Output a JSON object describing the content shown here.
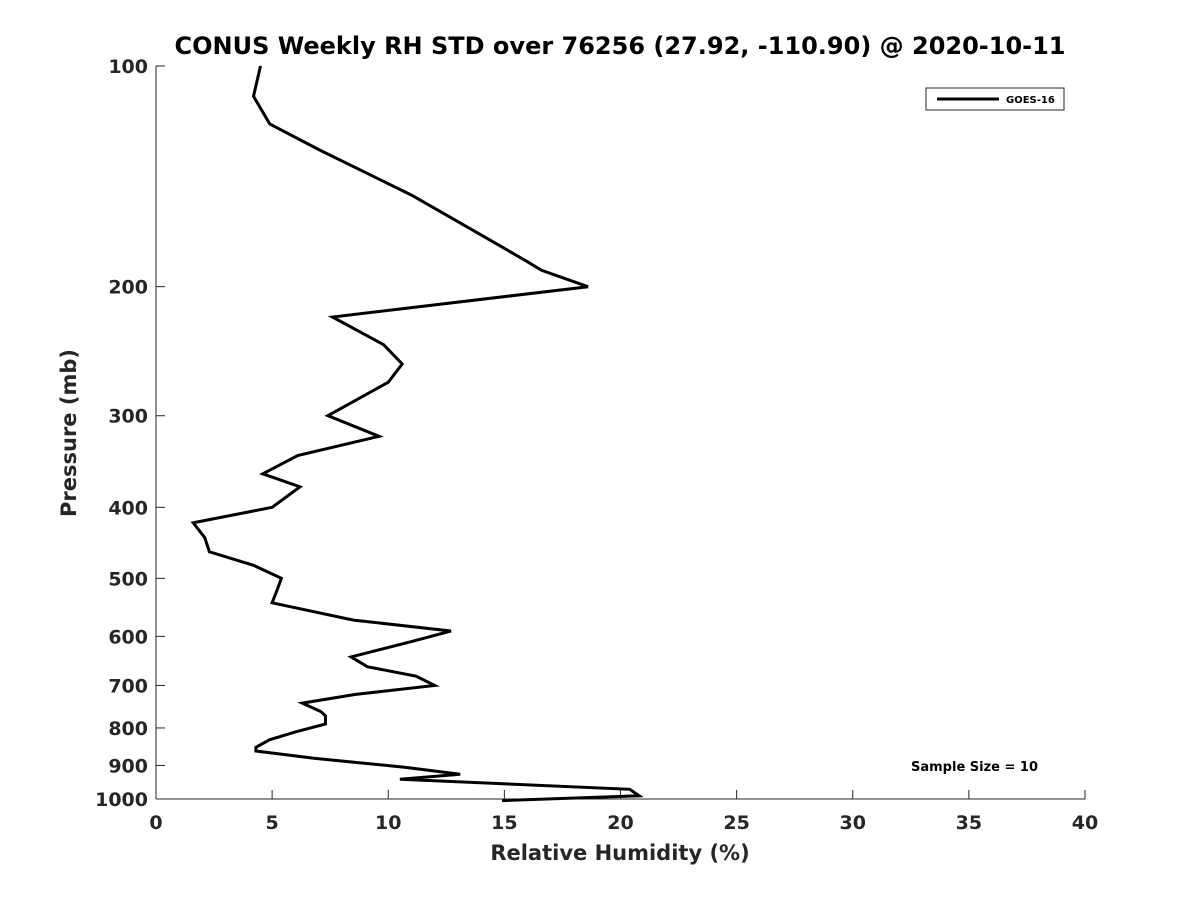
{
  "chart_data": {
    "type": "line",
    "title": "CONUS Weekly RH STD over 76256 (27.92, -110.90) @ 2020-10-11",
    "xlabel": "Relative Humidity (%)",
    "ylabel": "Pressure (mb)",
    "xlim": [
      0,
      40
    ],
    "ylim": [
      100,
      1000
    ],
    "y_scale": "log",
    "y_direction": "reversed",
    "x_ticks": [
      "0",
      "5",
      "10",
      "15",
      "20",
      "25",
      "30",
      "35",
      "40"
    ],
    "y_ticks": [
      "100",
      "200",
      "300",
      "400",
      "500",
      "600",
      "700",
      "800",
      "900",
      "1000"
    ],
    "grid": false,
    "legend_position": "top-right",
    "annotation": "Sample Size = 10",
    "series": [
      {
        "name": "GOES-16",
        "color": "#000000",
        "x": [
          4.5,
          4.2,
          4.9,
          7.0,
          11.0,
          14.0,
          16.0,
          16.6,
          18.6,
          7.6,
          9.8,
          10.6,
          10.0,
          7.4,
          9.6,
          6.1,
          4.6,
          6.2,
          5.0,
          1.6,
          2.1,
          2.3,
          4.2,
          5.4,
          5.2,
          5.0,
          8.5,
          12.7,
          11.0,
          8.4,
          9.1,
          11.2,
          12.0,
          8.6,
          6.3,
          6.7,
          7.1,
          7.3,
          7.3,
          6.0,
          4.9,
          4.3,
          4.3,
          6.8,
          10.7,
          13.1,
          10.5,
          20.4,
          20.8,
          14.9
        ],
        "y": [
          100,
          110,
          120,
          130,
          150,
          170,
          185,
          190,
          200,
          220,
          240,
          255,
          270,
          300,
          320,
          340,
          360,
          375,
          400,
          420,
          440,
          460,
          480,
          500,
          520,
          540,
          570,
          590,
          610,
          640,
          660,
          680,
          700,
          720,
          740,
          750,
          760,
          770,
          790,
          810,
          830,
          850,
          860,
          880,
          905,
          925,
          940,
          970,
          990,
          1005
        ]
      }
    ]
  }
}
